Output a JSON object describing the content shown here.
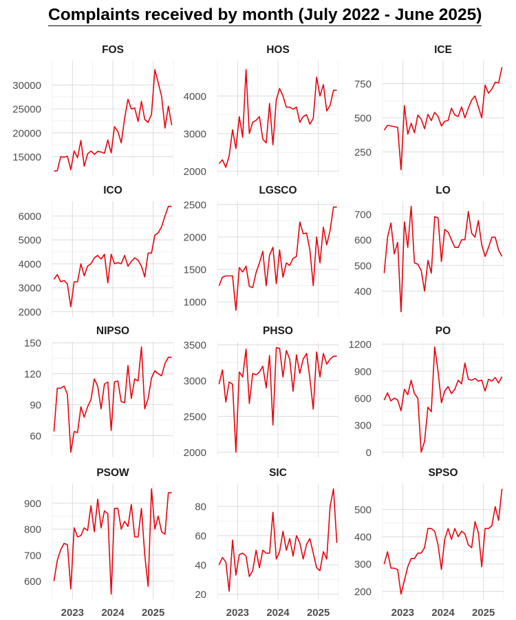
{
  "chart_data": {
    "type": "line",
    "layout": "facet-grid-3-columns",
    "title": "Complaints received by month (July 2022 - June 2025)",
    "xlabel": "",
    "ylabel": "",
    "x_start": "2022-07",
    "x_end": "2025-06",
    "xlim": [
      2022.5,
      2025.5
    ],
    "x_ticks": [
      2023,
      2024,
      2025
    ],
    "x_tick_labels": [
      "2023",
      "2024",
      "2025"
    ],
    "line_color": "#e8000b",
    "grid": true,
    "panels": [
      {
        "name": "FOS",
        "ylim": [
          12000,
          34000
        ],
        "y_ticks": [
          15000,
          20000,
          25000,
          30000
        ],
        "y_tick_labels": [
          "15000",
          "20000",
          "25000",
          "30000"
        ],
        "values": [
          12000,
          12100,
          15000,
          14900,
          15100,
          12300,
          16200,
          14800,
          18400,
          13000,
          15600,
          16200,
          15500,
          16100,
          16000,
          15700,
          18500,
          15800,
          21300,
          20300,
          17900,
          23000,
          27000,
          25000,
          25200,
          22400,
          26600,
          22800,
          22200,
          23900,
          33200,
          30500,
          27600,
          21000,
          25600,
          21600
        ]
      },
      {
        "name": "HOS",
        "ylim": [
          2000,
          4800
        ],
        "y_ticks": [
          2000,
          3000,
          4000
        ],
        "y_tick_labels": [
          "2000",
          "3000",
          "4000"
        ],
        "values": [
          2200,
          2300,
          2100,
          2400,
          3100,
          2600,
          3450,
          2900,
          4700,
          3000,
          3300,
          3350,
          3450,
          2850,
          2750,
          3800,
          2700,
          3900,
          4200,
          4000,
          3700,
          3700,
          3650,
          3700,
          3300,
          3450,
          3500,
          3250,
          3400,
          4500,
          4000,
          4300,
          3600,
          3750,
          4150,
          4150
        ]
      },
      {
        "name": "ICE",
        "ylim": [
          110,
          880
        ],
        "y_ticks": [
          250,
          500,
          750
        ],
        "y_tick_labels": [
          "250",
          "500",
          "750"
        ],
        "values": [
          410,
          445,
          440,
          435,
          430,
          120,
          590,
          380,
          460,
          390,
          520,
          490,
          420,
          525,
          480,
          540,
          510,
          440,
          475,
          480,
          570,
          520,
          510,
          580,
          500,
          570,
          630,
          660,
          580,
          500,
          740,
          680,
          710,
          760,
          755,
          870
        ]
      },
      {
        "name": "ICO",
        "ylim": [
          2000,
          6400
        ],
        "y_ticks": [
          2000,
          3000,
          4000,
          5000,
          6000
        ],
        "y_tick_labels": [
          "2000",
          "3000",
          "4000",
          "5000",
          "6000"
        ],
        "values": [
          3350,
          3550,
          3250,
          3300,
          3150,
          2200,
          3250,
          3250,
          4000,
          3500,
          3900,
          4000,
          4250,
          4350,
          4200,
          4400,
          3200,
          4400,
          4000,
          4050,
          4000,
          4350,
          3900,
          4100,
          4250,
          4150,
          3900,
          3450,
          4450,
          4450,
          5200,
          5300,
          5550,
          6000,
          6400,
          6400
        ]
      },
      {
        "name": "LGSCO",
        "ylim": [
          850,
          2470
        ],
        "y_ticks": [
          1000,
          1500,
          2000,
          2500
        ],
        "y_tick_labels": [
          "1000",
          "1500",
          "2000",
          "2500"
        ],
        "values": [
          1250,
          1380,
          1400,
          1400,
          1400,
          870,
          1530,
          1460,
          1550,
          1240,
          1220,
          1450,
          1600,
          1780,
          1250,
          1720,
          1840,
          1280,
          1800,
          1380,
          1600,
          1560,
          1670,
          1700,
          2230,
          2050,
          2060,
          1800,
          1250,
          2000,
          1600,
          2150,
          1880,
          2100,
          2460,
          2460
        ]
      },
      {
        "name": "LO",
        "ylim": [
          320,
          730
        ],
        "y_ticks": [
          400,
          500,
          600,
          700
        ],
        "y_tick_labels": [
          "400",
          "500",
          "600",
          "700"
        ],
        "values": [
          470,
          610,
          665,
          545,
          590,
          320,
          670,
          570,
          730,
          510,
          505,
          480,
          400,
          520,
          470,
          690,
          685,
          515,
          640,
          630,
          600,
          570,
          570,
          600,
          600,
          710,
          625,
          610,
          675,
          580,
          535,
          570,
          610,
          610,
          560,
          535
        ]
      },
      {
        "name": "NIPSO",
        "ylim": [
          44,
          146
        ],
        "y_ticks": [
          60,
          90,
          120,
          150
        ],
        "y_tick_labels": [
          "60",
          "90",
          "120",
          "150"
        ],
        "values": [
          64,
          106,
          106,
          108,
          100,
          44,
          64,
          63,
          88,
          78,
          88,
          95,
          115,
          108,
          86,
          110,
          112,
          65,
          112,
          113,
          93,
          92,
          128,
          96,
          115,
          113,
          146,
          86,
          96,
          116,
          123,
          120,
          118,
          130,
          136,
          136
        ]
      },
      {
        "name": "PHSO",
        "ylim": [
          2000,
          3470
        ],
        "y_ticks": [
          2000,
          2500,
          3000,
          3500
        ],
        "y_tick_labels": [
          "2000",
          "2500",
          "3000",
          "3500"
        ],
        "values": [
          2950,
          3150,
          2700,
          2980,
          2950,
          2000,
          3120,
          3050,
          3440,
          2680,
          3100,
          3080,
          3120,
          3200,
          2900,
          3350,
          2380,
          3460,
          3450,
          3050,
          3420,
          3300,
          2850,
          3360,
          3100,
          3300,
          3380,
          3030,
          2600,
          3400,
          3050,
          3380,
          3230,
          3300,
          3340,
          3340
        ]
      },
      {
        "name": "PO",
        "ylim": [
          0,
          1170
        ],
        "y_ticks": [
          0,
          300,
          600,
          900,
          1200
        ],
        "y_tick_labels": [
          "0",
          "300",
          "600",
          "900",
          "1200"
        ],
        "values": [
          580,
          660,
          570,
          600,
          580,
          460,
          700,
          640,
          800,
          650,
          600,
          0,
          120,
          500,
          450,
          1170,
          900,
          550,
          680,
          730,
          650,
          700,
          800,
          760,
          990,
          810,
          800,
          820,
          790,
          800,
          680,
          810,
          790,
          830,
          770,
          840
        ]
      },
      {
        "name": "PSOW",
        "ylim": [
          550,
          955
        ],
        "y_ticks": [
          600,
          700,
          800,
          900
        ],
        "y_tick_labels": [
          "600",
          "700",
          "800",
          "900"
        ],
        "values": [
          600,
          680,
          720,
          745,
          740,
          570,
          805,
          770,
          775,
          805,
          795,
          890,
          790,
          915,
          805,
          870,
          860,
          550,
          880,
          880,
          800,
          830,
          810,
          895,
          770,
          770,
          880,
          700,
          580,
          955,
          800,
          850,
          790,
          780,
          940,
          940
        ]
      },
      {
        "name": "SIC",
        "ylim": [
          20,
          92
        ],
        "y_ticks": [
          20,
          40,
          60,
          80
        ],
        "y_tick_labels": [
          "20",
          "40",
          "60",
          "80"
        ],
        "values": [
          40,
          45,
          42,
          22,
          57,
          33,
          47,
          48,
          46,
          32,
          36,
          50,
          38,
          50,
          48,
          48,
          76,
          44,
          49,
          63,
          50,
          58,
          46,
          60,
          55,
          44,
          54,
          58,
          48,
          38,
          36,
          49,
          44,
          80,
          92,
          55
        ]
      },
      {
        "name": "SPSO",
        "ylim": [
          190,
          575
        ],
        "y_ticks": [
          200,
          300,
          400,
          500
        ],
        "y_tick_labels": [
          "200",
          "300",
          "400",
          "500"
        ],
        "values": [
          300,
          345,
          285,
          285,
          280,
          190,
          240,
          290,
          320,
          320,
          340,
          340,
          360,
          430,
          430,
          420,
          370,
          280,
          390,
          430,
          390,
          430,
          400,
          420,
          410,
          370,
          360,
          455,
          415,
          290,
          430,
          430,
          440,
          510,
          460,
          575
        ]
      }
    ]
  }
}
